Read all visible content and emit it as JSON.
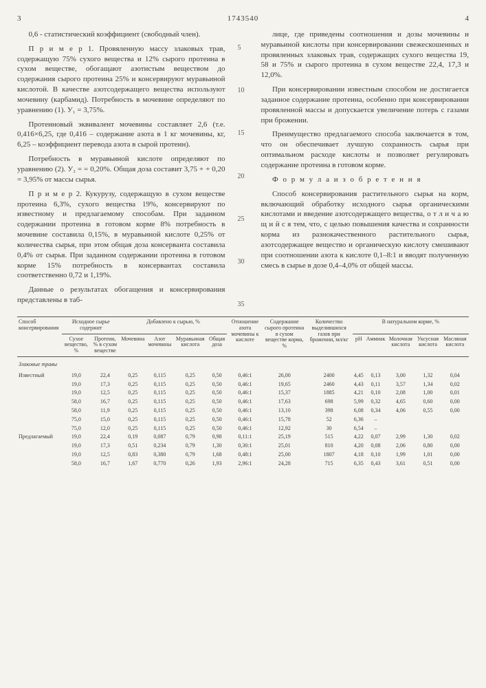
{
  "header": {
    "page_left": "3",
    "doc_number": "1743540",
    "page_right": "4"
  },
  "left_col": {
    "p1": "0,6 - статистический коэффициент (свободный член).",
    "p2": "П р и м е р  1. Провяленную массу злаковых трав, содержащую 75% сухого вещества и 12% сырого протеина в сухом веществе, обогащают азотистым веществом до содержания сырого протеина 25% и консервируют муравьиной кислотой. В качестве азотсодержащего вещества используют мочевину (карбамид). Потребность в мочевине определяют по уравнению (1). У₁ = 3,75%.",
    "p3": "Протеиновый эквивалент мочевины составляет 2,6 (т.е. 0,416×6,25, где 0,416 – содержание азота в 1 кг мочевины, кг, 6,25 – коэффициент перевода азота в сырой протеин).",
    "p4": "Потребность в муравьиной кислоте определяют по уравнению (2). У₂ = = 0,20%. Общая доза составит 3,75 + + 0,20 = 3,95% от массы сырья.",
    "p5": "П р и м е р  2. Кукурузу, содержащую в сухом веществе протеина 6,3%, сухого вещества 19%, консервируют по известному и предлагаемому способам. При заданном содержании протеина в готовом корме 8% потребность в мочевине составила 0,15%, в муравьиной кислоте 0,25% от количества сырья, при этом общая доза консерванта составила 0,4% от сырья. При заданном содержании протеина в готовом корме 15% потребность в консервантах составила соответственно 0,72 и 1,19%.",
    "p6": "Данные о результатах обогащения и консервирования представлены в таб-"
  },
  "right_col": {
    "p1": "лице, где приведены соотношения и дозы мочевины и муравьиной кислоты при консервировании свежескошенных и провяленных злаковых трав, содержащих сухого вещества 19, 58 и 75% и сырого протеина в сухом веществе 22,4, 17,3 и 12,0%.",
    "p2": "При консервировании известным способом не достигается заданное содержание протеина, особенно при консервировании провяленной массы и допускается увеличение потерь с газами при брожении.",
    "p3": "Преимущество предлагаемого способа заключается в том, что он обеспечивает лучшую сохранность сырья при оптимальном расходе кислоты и позволяет регулировать содержание протеина в готовом корме.",
    "formula_heading": "Ф о р м у л а  и з о б р е т е н и я",
    "p4": "Способ консервирования растительного сырья на корм, включающий обработку исходного сырья органическими кислотами и введение азотсодержащего вещества,  о т л и ч а ю щ и й с я  тем, что, с целью повышения качества и сохранности корма из разнокачественного растительного сырья, азотсодержащее вещество и органическую кислоту смешивают при соотношении азота к кислоте 0,1–8:1 и вводят полученную смесь в сырье в дозе 0,4–4,0% от общей массы."
  },
  "gutter_nums": [
    "5",
    "10",
    "15",
    "20",
    "25",
    "30",
    "35"
  ],
  "table": {
    "headers": {
      "c1": "Способ консервирования",
      "c2_group": "Исходное сырье содержит",
      "c2a": "Сухое вещество, %",
      "c2b": "Протеин, % в сухом веществе",
      "c3_group": "Добавлено к сырью, %",
      "c3a": "Мочевина",
      "c3b": "Азот мочевины",
      "c3c": "Муравьиная кислота",
      "c3d": "Общая доза",
      "c4": "Отношение азота мочевины к кислоте",
      "c5": "Содержание сырого протеина в сухом веществе корма, %",
      "c6": "Количество выделившихся газов при брожении, мл/кг",
      "c7_group": "В натуральном корме, %",
      "c7a": "pH",
      "c7b": "Аммиак",
      "c7c": "Молочная кислота",
      "c7d": "Уксусная кислота",
      "c7e": "Масляная кислота"
    },
    "section": "Злаковые травы",
    "rows": [
      [
        "Известный",
        "19,0",
        "22,4",
        "0,25",
        "0,115",
        "0,25",
        "0,50",
        "0,46:1",
        "26,00",
        "2400",
        "4,45",
        "0,13",
        "3,00",
        "1,32",
        "0,04"
      ],
      [
        "",
        "19,0",
        "17,3",
        "0,25",
        "0,115",
        "0,25",
        "0,50",
        "0,46:1",
        "19,65",
        "2460",
        "4,43",
        "0,11",
        "3,57",
        "1,34",
        "0,02"
      ],
      [
        "",
        "19,0",
        "12,5",
        "0,25",
        "0,115",
        "0,25",
        "0,50",
        "0,46:1",
        "15,37",
        "1885",
        "4,21",
        "0,10",
        "2,08",
        "1,00",
        "0,01"
      ],
      [
        "",
        "58,0",
        "16,7",
        "0,25",
        "0,115",
        "0,25",
        "0,50",
        "0,46:1",
        "17,63",
        "698",
        "5,99",
        "0,32",
        "4,65",
        "0,60",
        "0,00"
      ],
      [
        "",
        "58,0",
        "11,9",
        "0,25",
        "0,115",
        "0,25",
        "0,50",
        "0,46:1",
        "13,10",
        "398",
        "6,08",
        "0,34",
        "4,06",
        "0,55",
        "0,00"
      ],
      [
        "",
        "75,0",
        "15,0",
        "0,25",
        "0,115",
        "0,25",
        "0,50",
        "0,46:1",
        "15,78",
        "52",
        "6,36",
        "–",
        "",
        "",
        ""
      ],
      [
        "",
        "75,0",
        "12,0",
        "0,25",
        "0,115",
        "0,25",
        "0,50",
        "0,46:1",
        "12,92",
        "30",
        "6,54",
        "–",
        "",
        "",
        ""
      ],
      [
        "Предлагаемый",
        "19,0",
        "22,4",
        "0,19",
        "0,087",
        "0,79",
        "0,98",
        "0,11:1",
        "25,19",
        "515",
        "4,22",
        "0,07",
        "2,99",
        "1,30",
        "0,02"
      ],
      [
        "",
        "19,0",
        "17,3",
        "0,51",
        "0,234",
        "0,79",
        "1,30",
        "0,30:1",
        "25,01",
        "810",
        "4,20",
        "0,08",
        "2,06",
        "0,80",
        "0,00"
      ],
      [
        "",
        "19,0",
        "12,5",
        "0,83",
        "0,380",
        "0,79",
        "1,68",
        "0,48:1",
        "25,00",
        "1807",
        "4,18",
        "0,10",
        "1,99",
        "1,01",
        "0,00"
      ],
      [
        "",
        "58,0",
        "16,7",
        "1,67",
        "0,770",
        "0,26",
        "1,93",
        "2,96:1",
        "24,28",
        "715",
        "6,35",
        "0,43",
        "3,61",
        "0,51",
        "0,00"
      ]
    ]
  }
}
